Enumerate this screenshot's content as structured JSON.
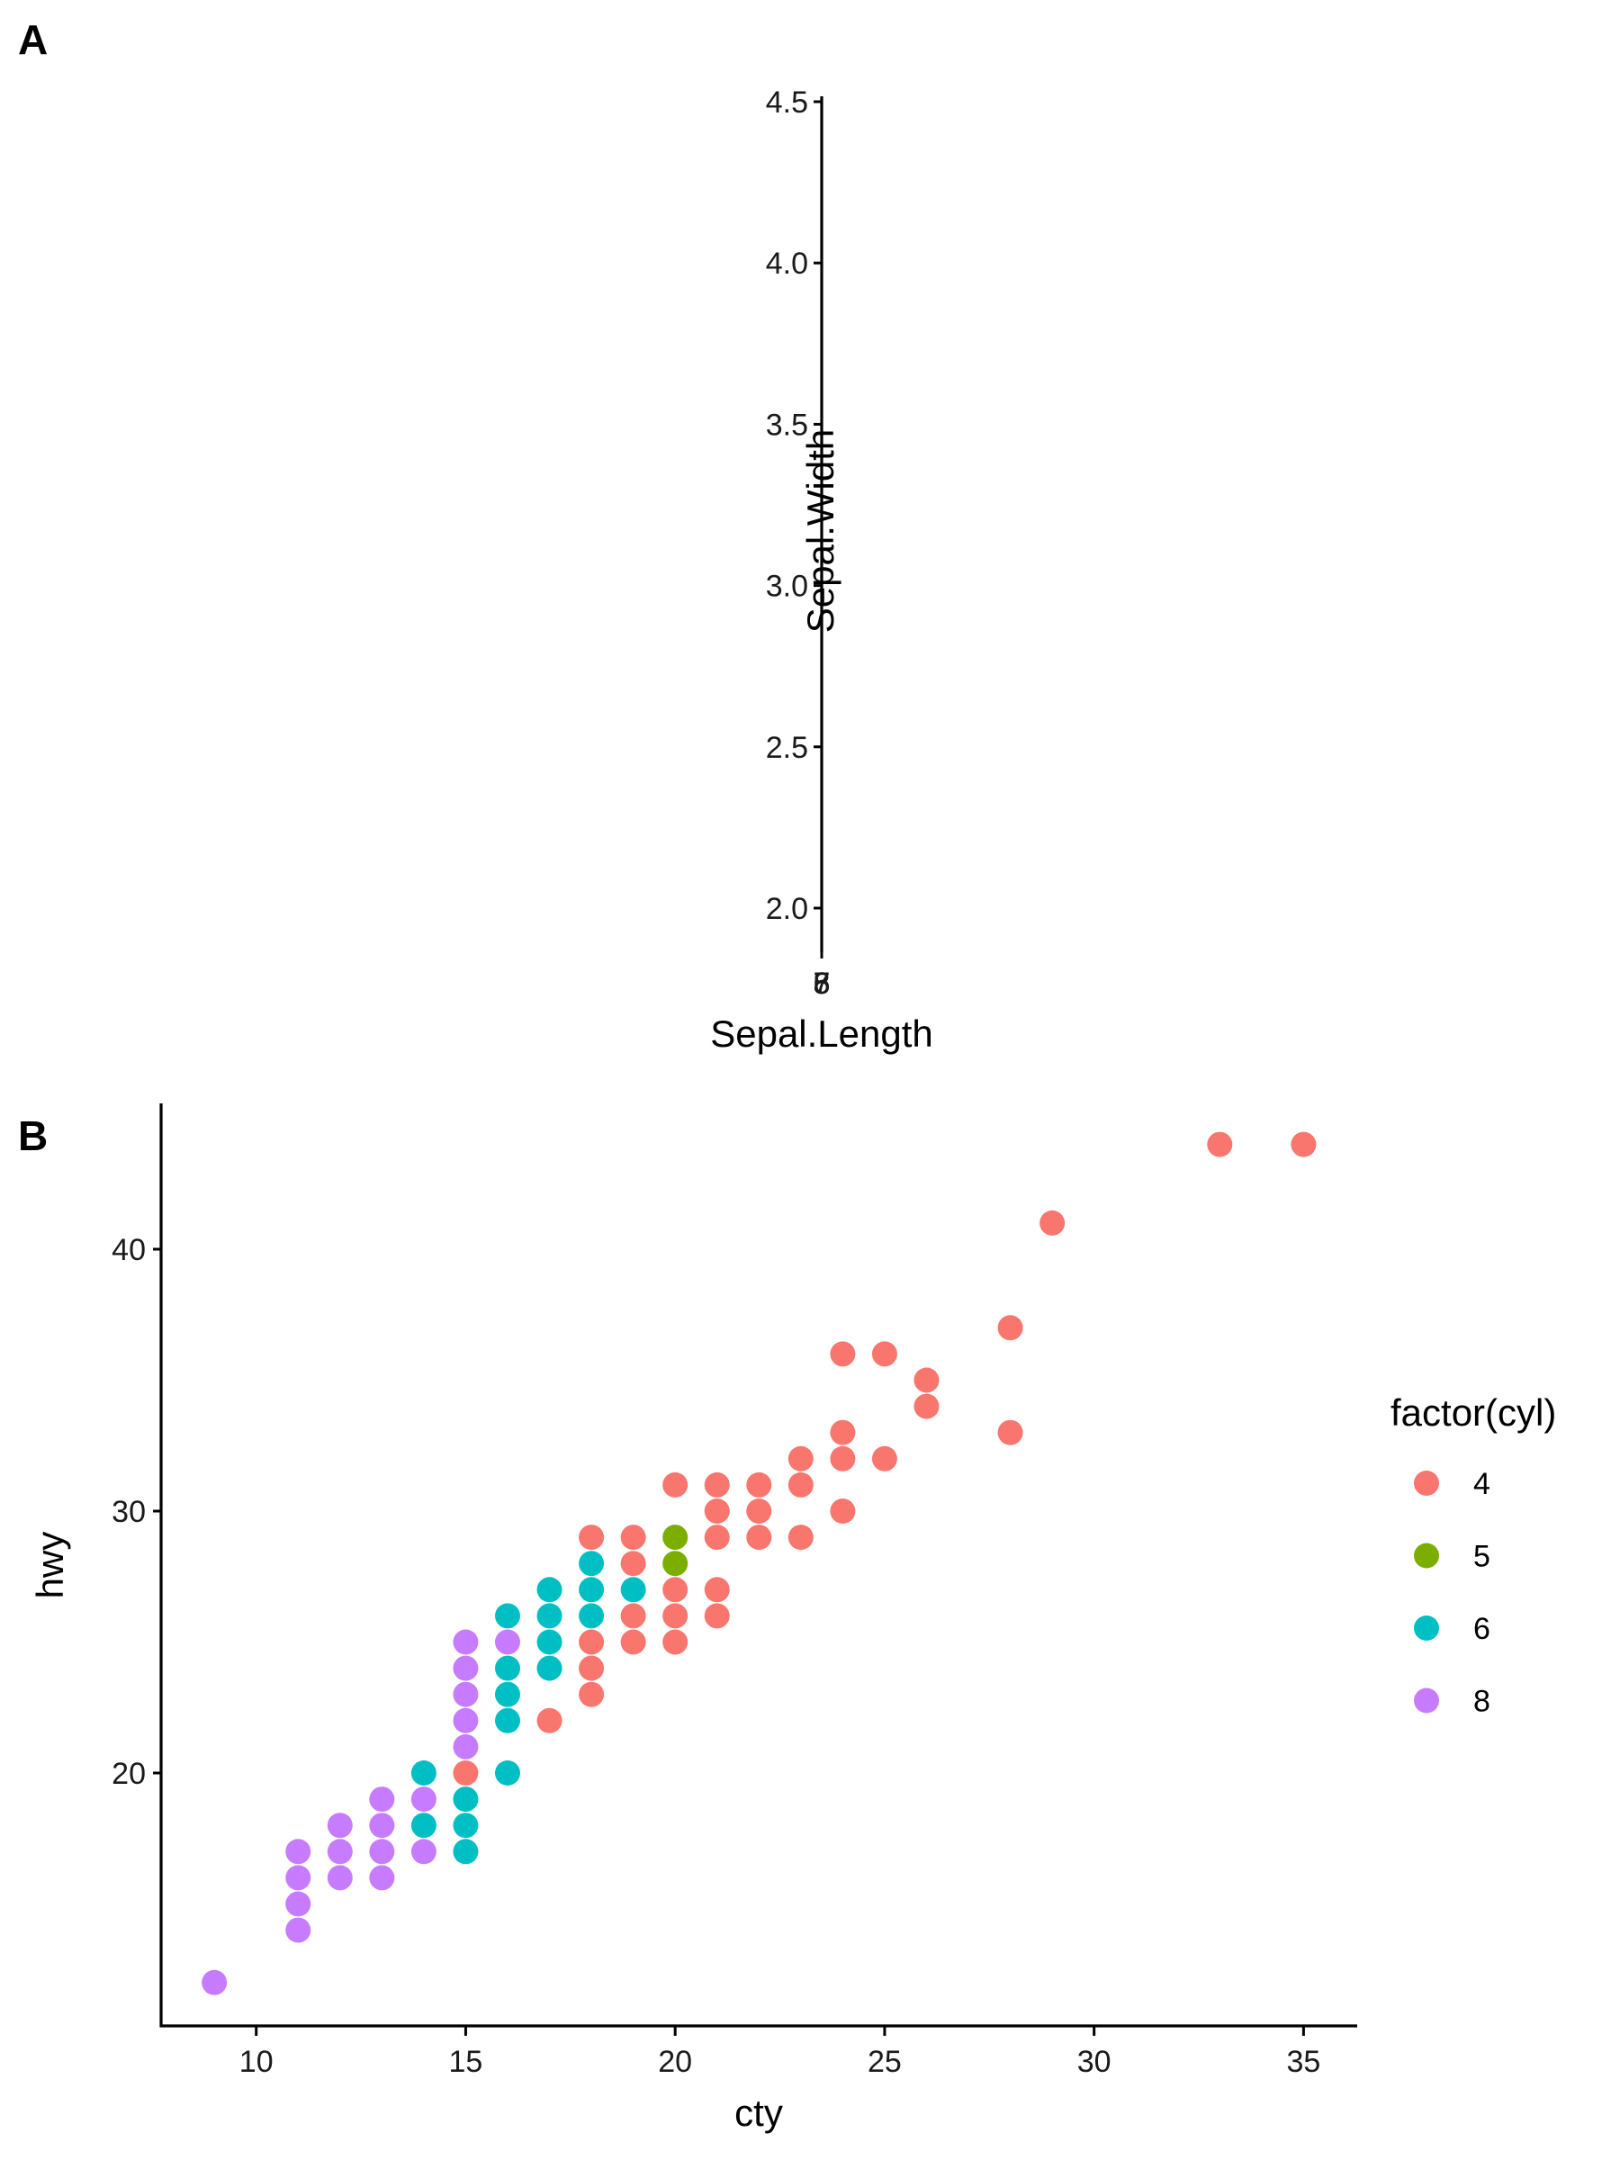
{
  "chart_data": [
    {
      "panel_tag": "A",
      "type": "scatter",
      "title": "",
      "xlabel": "Sepal.Length",
      "ylabel": "Sepal.Width",
      "y_ticks": [
        "2.0",
        "2.5",
        "3.0",
        "3.5",
        "4.0",
        "4.5"
      ],
      "y_tick_values": [
        2.0,
        2.5,
        3.0,
        3.5,
        4.0,
        4.5
      ],
      "ylim": [
        1.88,
        4.52
      ],
      "x_ticks": [
        "5",
        "6",
        "7",
        "8"
      ],
      "x_ticks_note": "x-axis collapsed to zero width; tick labels overlap at a single position",
      "points": [],
      "grid": false
    },
    {
      "panel_tag": "B",
      "type": "scatter",
      "title": "",
      "xlabel": "cty",
      "ylabel": "hwy",
      "x_ticks": [
        "10",
        "15",
        "20",
        "25",
        "30",
        "35"
      ],
      "x_tick_values": [
        10,
        15,
        20,
        25,
        30,
        35
      ],
      "y_ticks": [
        "20",
        "30",
        "40"
      ],
      "y_tick_values": [
        20,
        30,
        40
      ],
      "xlim": [
        7.7,
        36.3
      ],
      "ylim": [
        10.4,
        45.6
      ],
      "grid": false,
      "legend": {
        "title": "factor(cyl)",
        "position": "right",
        "entries": [
          {
            "label": "4",
            "color": "#F8766D"
          },
          {
            "label": "5",
            "color": "#7CAE00"
          },
          {
            "label": "6",
            "color": "#00BFC4"
          },
          {
            "label": "8",
            "color": "#C77CFF"
          }
        ]
      },
      "series": [
        {
          "name": "4",
          "color": "#F8766D",
          "points": [
            [
              15,
              20
            ],
            [
              17,
              22
            ],
            [
              18,
              23
            ],
            [
              18,
              24
            ],
            [
              18,
              25
            ],
            [
              18,
              29
            ],
            [
              19,
              25
            ],
            [
              19,
              26
            ],
            [
              19,
              28
            ],
            [
              19,
              29
            ],
            [
              20,
              25
            ],
            [
              20,
              26
            ],
            [
              20,
              27
            ],
            [
              20,
              31
            ],
            [
              21,
              26
            ],
            [
              21,
              27
            ],
            [
              21,
              29
            ],
            [
              21,
              30
            ],
            [
              21,
              31
            ],
            [
              22,
              29
            ],
            [
              22,
              30
            ],
            [
              22,
              31
            ],
            [
              23,
              29
            ],
            [
              23,
              31
            ],
            [
              23,
              32
            ],
            [
              24,
              30
            ],
            [
              24,
              32
            ],
            [
              24,
              33
            ],
            [
              24,
              36
            ],
            [
              25,
              32
            ],
            [
              25,
              36
            ],
            [
              26,
              34
            ],
            [
              26,
              35
            ],
            [
              28,
              33
            ],
            [
              28,
              37
            ],
            [
              29,
              41
            ],
            [
              33,
              44
            ],
            [
              35,
              44
            ]
          ]
        },
        {
          "name": "5",
          "color": "#7CAE00",
          "points": [
            [
              20,
              28
            ],
            [
              20,
              29
            ]
          ]
        },
        {
          "name": "6",
          "color": "#00BFC4",
          "points": [
            [
              14,
              18
            ],
            [
              14,
              20
            ],
            [
              15,
              17
            ],
            [
              15,
              18
            ],
            [
              15,
              19
            ],
            [
              16,
              20
            ],
            [
              16,
              22
            ],
            [
              16,
              23
            ],
            [
              16,
              24
            ],
            [
              16,
              26
            ],
            [
              17,
              24
            ],
            [
              17,
              25
            ],
            [
              17,
              26
            ],
            [
              17,
              27
            ],
            [
              18,
              26
            ],
            [
              18,
              27
            ],
            [
              18,
              28
            ],
            [
              19,
              27
            ]
          ]
        },
        {
          "name": "8",
          "color": "#C77CFF",
          "points": [
            [
              9,
              12
            ],
            [
              11,
              14
            ],
            [
              11,
              15
            ],
            [
              11,
              16
            ],
            [
              11,
              17
            ],
            [
              12,
              16
            ],
            [
              12,
              17
            ],
            [
              12,
              18
            ],
            [
              13,
              16
            ],
            [
              13,
              17
            ],
            [
              13,
              18
            ],
            [
              13,
              19
            ],
            [
              14,
              17
            ],
            [
              14,
              19
            ],
            [
              15,
              21
            ],
            [
              15,
              22
            ],
            [
              15,
              23
            ],
            [
              15,
              24
            ],
            [
              15,
              25
            ],
            [
              16,
              25
            ]
          ]
        }
      ]
    }
  ]
}
